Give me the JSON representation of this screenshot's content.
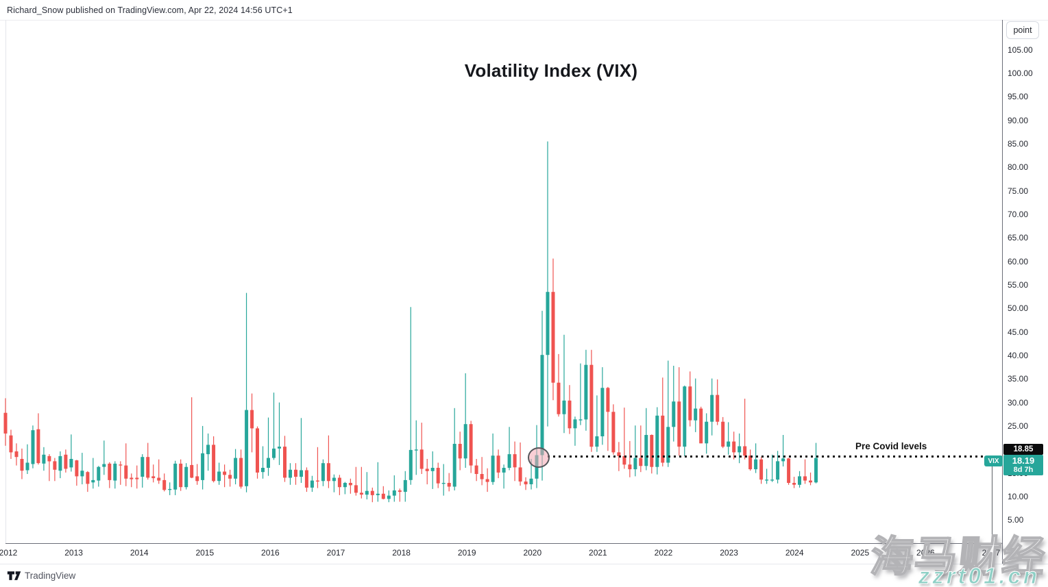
{
  "header": {
    "publish_line": "Richard_Snow published on TradingView.com, Apr 22, 2024 14:56 UTC+1"
  },
  "chart": {
    "title": "Volatility Index (VIX)",
    "unit_button_label": "point",
    "annotation_label": "Pre Covid levels",
    "price_line_value": "18.85",
    "last_price": {
      "symbol": "VIX",
      "value": "18.19",
      "countdown": "8d 7h"
    }
  },
  "price_axis": {
    "labels": [
      "105.00",
      "100.00",
      "95.00",
      "90.00",
      "85.00",
      "80.00",
      "75.00",
      "70.00",
      "65.00",
      "60.00",
      "55.00",
      "50.00",
      "45.00",
      "40.00",
      "35.00",
      "30.00",
      "25.00",
      "15.00",
      "10.00",
      "5.00"
    ]
  },
  "time_axis": {
    "labels": [
      "2012",
      "2013",
      "2014",
      "2015",
      "2016",
      "2017",
      "2018",
      "2019",
      "2020",
      "2021",
      "2022",
      "2023",
      "2024",
      "2025",
      "2026",
      "2027"
    ]
  },
  "footer": {
    "brand": "TradingView"
  },
  "watermark": {
    "line1": "海马财经",
    "line2": "zzrt01.cn"
  },
  "colors": {
    "up": "#26a69a",
    "down": "#ef5350",
    "price_line_badge_bg": "#0b0b0c",
    "last_badge_bg": "#26a69a",
    "watermark_teal": "#8fd0c6"
  },
  "chart_data": {
    "type": "candlestick",
    "title": "Volatility Index (VIX)",
    "symbol": "VIX",
    "timeframe": "monthly",
    "ylabel": "point",
    "ylim": [
      0,
      110
    ],
    "x_start": "2011-12",
    "x_end": "2024-04",
    "grid": false,
    "legend_position": "none",
    "pre_covid_level": 18.85,
    "last_price": 18.19,
    "candles_format": [
      "open",
      "high",
      "low",
      "close"
    ],
    "candles": [
      [
        27.8,
        30.9,
        20.8,
        23.4
      ],
      [
        23.0,
        24.2,
        18.0,
        19.4
      ],
      [
        19.6,
        21.3,
        16.6,
        18.4
      ],
      [
        18.0,
        20.2,
        13.7,
        15.5
      ],
      [
        15.6,
        21.1,
        14.8,
        17.2
      ],
      [
        16.9,
        25.1,
        16.0,
        24.1
      ],
      [
        24.3,
        27.7,
        16.8,
        17.1
      ],
      [
        17.0,
        20.5,
        15.5,
        18.9
      ],
      [
        18.6,
        19.0,
        13.3,
        17.5
      ],
      [
        17.5,
        18.2,
        13.3,
        15.7
      ],
      [
        15.5,
        19.6,
        13.9,
        18.6
      ],
      [
        18.9,
        20.0,
        15.1,
        15.9
      ],
      [
        16.2,
        23.2,
        15.3,
        18.0
      ],
      [
        17.7,
        17.8,
        12.3,
        14.3
      ],
      [
        14.3,
        19.3,
        12.6,
        15.5
      ],
      [
        15.2,
        15.4,
        11.0,
        12.7
      ],
      [
        13.0,
        18.2,
        11.7,
        13.5
      ],
      [
        13.4,
        16.5,
        12.1,
        16.3
      ],
      [
        16.3,
        21.9,
        14.6,
        16.9
      ],
      [
        17.0,
        17.3,
        11.8,
        13.5
      ],
      [
        13.4,
        17.5,
        11.7,
        17.0
      ],
      [
        16.8,
        17.5,
        12.5,
        16.6
      ],
      [
        16.6,
        21.3,
        12.2,
        13.8
      ],
      [
        14.0,
        14.9,
        12.0,
        13.7
      ],
      [
        14.0,
        16.6,
        11.7,
        13.7
      ],
      [
        14.2,
        19.0,
        11.9,
        18.4
      ],
      [
        18.4,
        21.4,
        13.6,
        14.0
      ],
      [
        14.3,
        16.8,
        13.0,
        13.9
      ],
      [
        14.0,
        17.9,
        12.7,
        13.4
      ],
      [
        13.5,
        14.9,
        11.1,
        11.4
      ],
      [
        11.6,
        13.0,
        10.3,
        11.6
      ],
      [
        11.5,
        17.6,
        10.3,
        17.0
      ],
      [
        17.0,
        17.9,
        11.2,
        12.0
      ],
      [
        12.0,
        17.1,
        11.5,
        16.3
      ],
      [
        16.7,
        31.1,
        13.9,
        14.0
      ],
      [
        14.3,
        16.9,
        12.5,
        13.3
      ],
      [
        13.5,
        25.0,
        11.5,
        19.2
      ],
      [
        19.0,
        23.4,
        15.5,
        21.0
      ],
      [
        21.0,
        22.8,
        13.0,
        13.3
      ],
      [
        13.3,
        17.2,
        12.5,
        15.3
      ],
      [
        15.3,
        16.8,
        12.0,
        14.6
      ],
      [
        14.6,
        15.7,
        12.1,
        13.8
      ],
      [
        13.8,
        20.1,
        12.6,
        18.2
      ],
      [
        18.2,
        20.0,
        11.7,
        12.1
      ],
      [
        12.2,
        53.3,
        10.9,
        28.4
      ],
      [
        28.4,
        31.9,
        19.4,
        24.5
      ],
      [
        24.5,
        24.9,
        13.8,
        15.1
      ],
      [
        15.2,
        20.7,
        13.8,
        16.1
      ],
      [
        16.1,
        26.8,
        14.4,
        18.2
      ],
      [
        18.2,
        32.1,
        17.8,
        20.2
      ],
      [
        20.2,
        30.0,
        16.7,
        20.6
      ],
      [
        20.6,
        22.9,
        13.1,
        14.0
      ],
      [
        14.0,
        17.1,
        12.5,
        15.7
      ],
      [
        15.7,
        17.1,
        12.5,
        14.2
      ],
      [
        14.2,
        26.7,
        12.9,
        15.6
      ],
      [
        15.6,
        16.2,
        11.0,
        11.9
      ],
      [
        11.9,
        14.4,
        11.0,
        13.4
      ],
      [
        13.4,
        20.5,
        11.8,
        13.3
      ],
      [
        13.3,
        17.9,
        12.2,
        17.1
      ],
      [
        17.1,
        23.0,
        11.8,
        13.3
      ],
      [
        13.3,
        14.7,
        10.9,
        14.0
      ],
      [
        14.0,
        14.6,
        10.3,
        12.0
      ],
      [
        12.0,
        13.1,
        10.5,
        12.9
      ],
      [
        12.9,
        13.8,
        10.6,
        12.4
      ],
      [
        12.4,
        16.3,
        10.2,
        10.8
      ],
      [
        10.8,
        16.3,
        9.6,
        10.4
      ],
      [
        10.4,
        15.2,
        9.4,
        11.2
      ],
      [
        11.2,
        11.9,
        8.8,
        10.3
      ],
      [
        10.3,
        17.3,
        8.9,
        10.6
      ],
      [
        10.6,
        12.2,
        9.4,
        9.5
      ],
      [
        9.5,
        11.3,
        8.8,
        10.2
      ],
      [
        10.2,
        14.5,
        8.9,
        11.3
      ],
      [
        11.3,
        11.7,
        8.9,
        11.0
      ],
      [
        11.0,
        15.4,
        8.9,
        13.5
      ],
      [
        13.5,
        50.3,
        12.5,
        19.9
      ],
      [
        19.9,
        26.2,
        14.6,
        20.0
      ],
      [
        20.0,
        25.7,
        14.8,
        15.9
      ],
      [
        15.9,
        18.0,
        12.6,
        15.4
      ],
      [
        15.4,
        19.6,
        11.6,
        16.1
      ],
      [
        16.1,
        17.2,
        11.8,
        12.8
      ],
      [
        12.8,
        16.9,
        10.2,
        12.9
      ],
      [
        12.9,
        15.0,
        11.1,
        12.1
      ],
      [
        12.1,
        28.8,
        11.3,
        21.2
      ],
      [
        21.2,
        23.8,
        15.6,
        18.1
      ],
      [
        18.1,
        36.2,
        16.1,
        25.4
      ],
      [
        25.4,
        26.1,
        15.0,
        16.6
      ],
      [
        16.6,
        18.0,
        13.3,
        14.8
      ],
      [
        14.8,
        18.4,
        12.4,
        13.7
      ],
      [
        13.7,
        16.0,
        11.0,
        13.1
      ],
      [
        13.1,
        23.4,
        12.5,
        18.7
      ],
      [
        18.7,
        20.0,
        13.9,
        15.1
      ],
      [
        15.1,
        16.8,
        11.7,
        16.1
      ],
      [
        16.1,
        24.8,
        15.6,
        19.0
      ],
      [
        19.0,
        21.7,
        13.3,
        16.2
      ],
      [
        16.2,
        21.5,
        12.3,
        13.2
      ],
      [
        13.2,
        14.1,
        11.4,
        12.6
      ],
      [
        12.6,
        18.0,
        11.5,
        13.8
      ],
      [
        13.8,
        25.2,
        11.8,
        18.8
      ],
      [
        18.8,
        49.5,
        13.4,
        40.1
      ],
      [
        40.1,
        85.5,
        24.9,
        53.5
      ],
      [
        53.5,
        60.6,
        30.5,
        34.2
      ],
      [
        34.2,
        40.3,
        27.0,
        27.5
      ],
      [
        27.5,
        44.4,
        23.5,
        30.4
      ],
      [
        30.4,
        33.7,
        23.3,
        24.5
      ],
      [
        24.5,
        27.0,
        20.8,
        26.4
      ],
      [
        26.4,
        38.3,
        25.2,
        26.4
      ],
      [
        26.4,
        41.2,
        24.0,
        38.0
      ],
      [
        38.0,
        41.2,
        19.5,
        20.6
      ],
      [
        20.6,
        31.5,
        19.5,
        22.8
      ],
      [
        22.8,
        37.5,
        21.0,
        33.1
      ],
      [
        33.1,
        33.3,
        19.7,
        28.0
      ],
      [
        28.0,
        29.6,
        18.9,
        19.4
      ],
      [
        19.4,
        21.6,
        15.4,
        18.6
      ],
      [
        18.6,
        28.9,
        15.9,
        16.8
      ],
      [
        16.8,
        21.8,
        14.1,
        15.8
      ],
      [
        15.8,
        25.1,
        14.3,
        18.2
      ],
      [
        18.2,
        25.1,
        15.2,
        16.5
      ],
      [
        16.5,
        28.8,
        15.6,
        23.1
      ],
      [
        23.1,
        23.2,
        14.9,
        16.3
      ],
      [
        16.3,
        29.0,
        14.7,
        27.2
      ],
      [
        27.2,
        35.3,
        16.4,
        17.2
      ],
      [
        17.2,
        38.9,
        16.3,
        24.8
      ],
      [
        24.8,
        37.8,
        21.7,
        30.2
      ],
      [
        30.2,
        37.5,
        18.7,
        20.6
      ],
      [
        20.6,
        33.6,
        18.6,
        33.4
      ],
      [
        33.4,
        36.6,
        24.9,
        26.2
      ],
      [
        26.2,
        35.1,
        23.7,
        28.7
      ],
      [
        28.7,
        29.1,
        21.3,
        21.3
      ],
      [
        21.3,
        27.7,
        19.1,
        25.9
      ],
      [
        25.9,
        35.1,
        23.0,
        31.6
      ],
      [
        31.6,
        34.9,
        25.2,
        25.9
      ],
      [
        25.9,
        26.9,
        20.3,
        20.6
      ],
      [
        20.6,
        25.8,
        18.9,
        21.7
      ],
      [
        21.7,
        23.8,
        17.9,
        19.4
      ],
      [
        19.4,
        23.4,
        17.1,
        20.7
      ],
      [
        20.7,
        30.8,
        17.9,
        18.7
      ],
      [
        18.7,
        20.0,
        15.5,
        15.8
      ],
      [
        15.8,
        21.3,
        15.0,
        17.9
      ],
      [
        17.9,
        18.4,
        12.7,
        13.6
      ],
      [
        13.6,
        15.9,
        12.7,
        13.6
      ],
      [
        13.6,
        18.9,
        13.1,
        13.6
      ],
      [
        13.6,
        19.7,
        12.8,
        17.5
      ],
      [
        17.5,
        23.1,
        16.4,
        18.1
      ],
      [
        18.1,
        18.2,
        12.5,
        12.9
      ],
      [
        12.9,
        14.2,
        11.8,
        12.5
      ],
      [
        12.5,
        15.4,
        11.9,
        14.3
      ],
      [
        14.3,
        17.9,
        12.7,
        13.4
      ],
      [
        13.4,
        15.1,
        12.4,
        13.0
      ],
      [
        13.0,
        21.4,
        12.8,
        18.19
      ]
    ]
  }
}
